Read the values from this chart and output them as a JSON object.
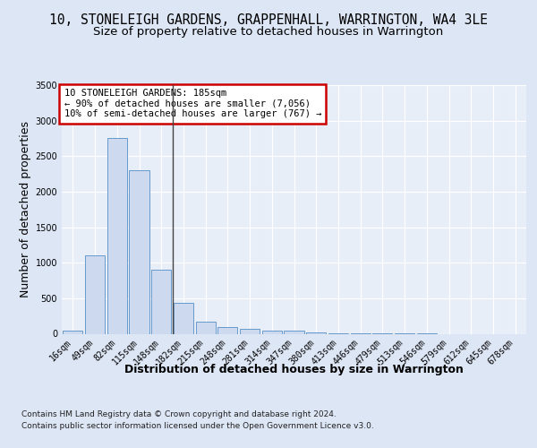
{
  "title_line1": "10, STONELEIGH GARDENS, GRAPPENHALL, WARRINGTON, WA4 3LE",
  "title_line2": "Size of property relative to detached houses in Warrington",
  "xlabel": "Distribution of detached houses by size in Warrington",
  "ylabel": "Number of detached properties",
  "categories": [
    "16sqm",
    "49sqm",
    "82sqm",
    "115sqm",
    "148sqm",
    "182sqm",
    "215sqm",
    "248sqm",
    "281sqm",
    "314sqm",
    "347sqm",
    "380sqm",
    "413sqm",
    "446sqm",
    "479sqm",
    "513sqm",
    "546sqm",
    "579sqm",
    "612sqm",
    "645sqm",
    "678sqm"
  ],
  "values": [
    50,
    1100,
    2750,
    2300,
    900,
    430,
    170,
    100,
    70,
    50,
    40,
    25,
    10,
    5,
    3,
    2,
    1,
    0,
    0,
    0,
    0
  ],
  "bar_color": "#ccd9ee",
  "bar_edge_color": "#6699cc",
  "vline_color": "#444444",
  "annotation_text": "10 STONELEIGH GARDENS: 185sqm\n← 90% of detached houses are smaller (7,056)\n10% of semi-detached houses are larger (767) →",
  "annotation_box_color": "#ffffff",
  "annotation_box_edge": "#cc0000",
  "ylim": [
    0,
    3500
  ],
  "yticks": [
    0,
    500,
    1000,
    1500,
    2000,
    2500,
    3000,
    3500
  ],
  "footer_line1": "Contains HM Land Registry data © Crown copyright and database right 2024.",
  "footer_line2": "Contains public sector information licensed under the Open Government Licence v3.0.",
  "bg_color": "#dde6f5",
  "plot_bg_color": "#e8eef8",
  "title_fontsize": 10.5,
  "subtitle_fontsize": 9.5,
  "tick_fontsize": 7,
  "label_fontsize": 9,
  "footer_fontsize": 6.5
}
